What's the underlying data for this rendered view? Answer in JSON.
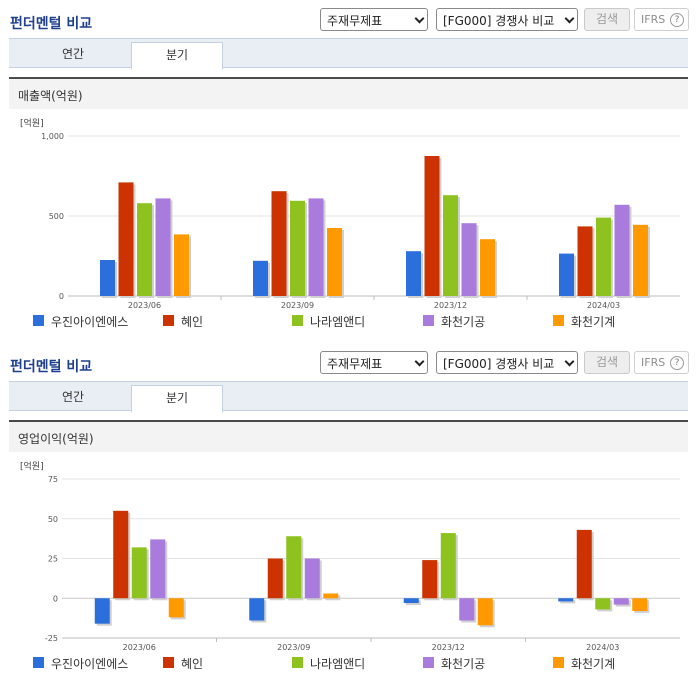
{
  "toolbar": {
    "title": "펀더멘털 비교",
    "select_statement": "주재무제표",
    "select_group": "[FG000] 경쟁사 비교",
    "search_label": "검색",
    "ifrs_label": "IFRS",
    "help_glyph": "?"
  },
  "tabs": {
    "annual": "연간",
    "quarterly": "분기"
  },
  "series_colors": [
    "#2a6fdb",
    "#cc3300",
    "#8dc21f",
    "#a87bdc",
    "#ff9900"
  ],
  "legend": [
    "우진아이엔에스",
    "혜인",
    "나라엠앤디",
    "화천기공",
    "화천기계"
  ],
  "chart_data": [
    {
      "type": "bar",
      "title": "매출액(억원)",
      "unit": "[억원]",
      "categories": [
        "2023/06",
        "2023/09",
        "2023/12",
        "2024/03"
      ],
      "ylim": [
        0,
        1000
      ],
      "yticks": [
        0,
        500,
        1000
      ],
      "ytick_labels": [
        "0",
        "500",
        "1,000"
      ],
      "series": [
        {
          "name": "우진아이엔에스",
          "values": [
            225,
            220,
            280,
            265
          ]
        },
        {
          "name": "혜인",
          "values": [
            710,
            655,
            875,
            435
          ]
        },
        {
          "name": "나라엠앤디",
          "values": [
            580,
            595,
            630,
            490
          ]
        },
        {
          "name": "화천기공",
          "values": [
            610,
            610,
            455,
            570
          ]
        },
        {
          "name": "화천기계",
          "values": [
            385,
            425,
            355,
            445
          ]
        }
      ]
    },
    {
      "type": "bar",
      "title": "영업이익(억원)",
      "unit": "[억원]",
      "categories": [
        "2023/06",
        "2023/09",
        "2023/12",
        "2024/03"
      ],
      "ylim": [
        -25,
        75
      ],
      "yticks": [
        -25,
        0,
        25,
        50,
        75
      ],
      "ytick_labels": [
        "-25",
        "0",
        "25",
        "50",
        "75"
      ],
      "series": [
        {
          "name": "우진아이엔에스",
          "values": [
            -16,
            -14,
            -3,
            -2
          ]
        },
        {
          "name": "혜인",
          "values": [
            55,
            25,
            24,
            43
          ]
        },
        {
          "name": "나라엠앤디",
          "values": [
            32,
            39,
            41,
            -7
          ]
        },
        {
          "name": "화천기공",
          "values": [
            37,
            25,
            -14,
            -4
          ]
        },
        {
          "name": "화천기계",
          "values": [
            -12,
            3,
            -17,
            -8
          ]
        }
      ]
    }
  ]
}
